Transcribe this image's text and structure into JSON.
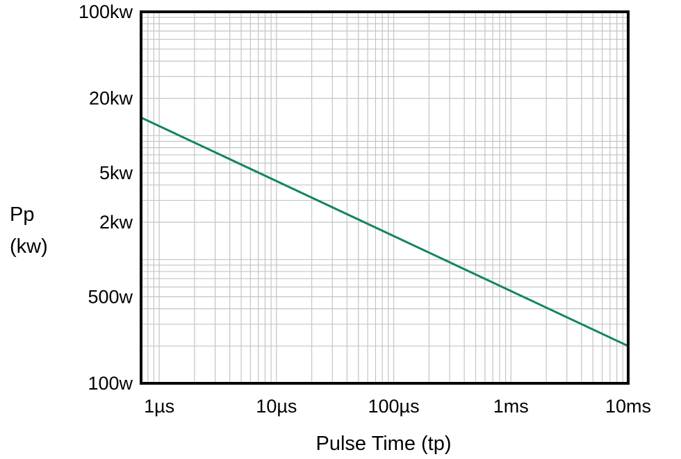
{
  "chart_data": {
    "type": "line",
    "title": "",
    "xlabel": "Pulse Time (tp)",
    "ylabel_lines": [
      "Pp",
      "(kw)"
    ],
    "x_scale": "log",
    "y_scale": "log",
    "x_unit": "seconds",
    "y_unit": "watts",
    "xlim": [
      7e-07,
      0.01
    ],
    "ylim": [
      100,
      100000
    ],
    "x_ticks": [
      {
        "value": 1e-06,
        "label": "1µs"
      },
      {
        "value": 1e-05,
        "label": "10µs"
      },
      {
        "value": 0.0001,
        "label": "100µs"
      },
      {
        "value": 0.001,
        "label": "1ms"
      },
      {
        "value": 0.01,
        "label": "10ms"
      }
    ],
    "y_ticks": [
      {
        "value": 100000,
        "label": "100kw"
      },
      {
        "value": 20000,
        "label": "20kw"
      },
      {
        "value": 5000,
        "label": "5kw"
      },
      {
        "value": 2000,
        "label": "2kw"
      },
      {
        "value": 500,
        "label": "500w"
      },
      {
        "value": 100,
        "label": "100w"
      }
    ],
    "grid": true,
    "line_color": "#13855f",
    "series": [
      {
        "values": [
          {
            "x": 7e-07,
            "y": 14000
          },
          {
            "x": 0.01,
            "y": 200
          }
        ]
      }
    ]
  }
}
